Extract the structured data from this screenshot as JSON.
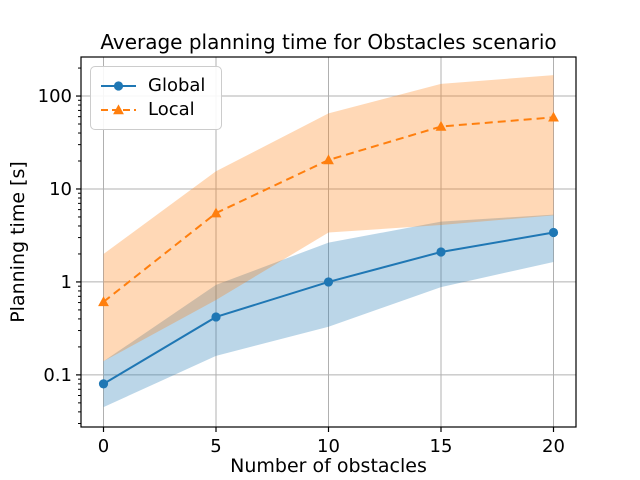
{
  "chart_data": {
    "type": "line",
    "title": "Average planning time for Obstacles scenario",
    "xlabel": "Number of obstacles",
    "ylabel": "Planning time [s]",
    "yscale": "log",
    "grid": true,
    "legend_position": "upper left",
    "x": [
      0,
      5,
      10,
      15,
      20
    ],
    "xticks": [
      0,
      5,
      10,
      15,
      20
    ],
    "xtick_labels": [
      "0",
      "5",
      "10",
      "15",
      "20"
    ],
    "yticks": [
      0.1,
      1,
      10,
      100
    ],
    "ytick_labels": [
      "0.1",
      "1",
      "10",
      "100"
    ],
    "xlim": [
      -1,
      21
    ],
    "ylim": [
      0.0275,
      263
    ],
    "grid_color": "#b0b0b0",
    "spine_color": "#000000",
    "series": [
      {
        "name": "Global",
        "color": "#1f77b4",
        "linestyle": "solid",
        "marker": "circle",
        "values": [
          0.08,
          0.42,
          1.0,
          2.1,
          3.4
        ],
        "band_lower": [
          0.045,
          0.16,
          0.33,
          0.88,
          1.64
        ],
        "band_upper": [
          0.14,
          0.93,
          2.65,
          4.45,
          5.3
        ],
        "band_alpha": 0.3
      },
      {
        "name": "Local",
        "color": "#ff7f0e",
        "linestyle": "dashed",
        "marker": "triangle",
        "values": [
          0.61,
          5.5,
          20.5,
          47,
          59
        ],
        "band_lower": [
          0.14,
          0.64,
          3.4,
          4.1,
          5.2
        ],
        "band_upper": [
          2.0,
          15.5,
          65,
          135,
          168
        ],
        "band_alpha": 0.3
      }
    ]
  }
}
